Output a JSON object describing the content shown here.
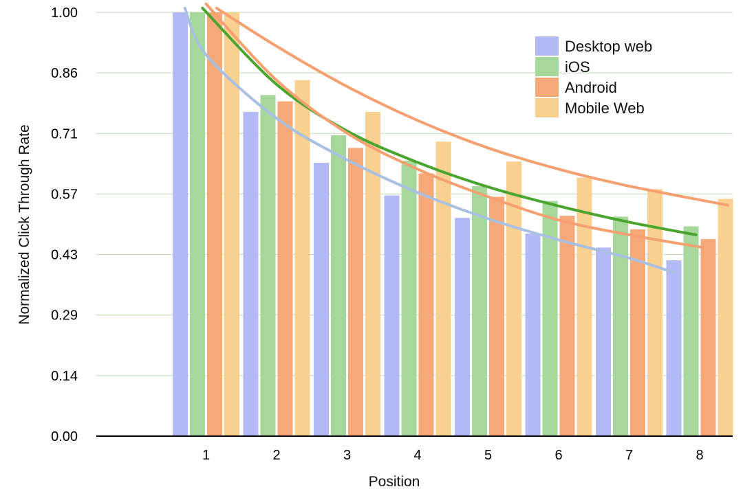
{
  "chart_data": {
    "type": "bar",
    "title": "",
    "xlabel": "Position",
    "ylabel": "Normalized Click Through Rate",
    "categories": [
      "1",
      "2",
      "3",
      "4",
      "5",
      "6",
      "7",
      "8"
    ],
    "yticks": [
      "0.00",
      "0.14",
      "0.29",
      "0.43",
      "0.57",
      "0.71",
      "0.86",
      "1.00"
    ],
    "ylim": [
      0,
      1.0
    ],
    "grid": true,
    "legend_position": "top-right",
    "series": [
      {
        "name": "Desktop web",
        "color": "#b3b9f5",
        "values": [
          1.0,
          0.765,
          0.645,
          0.568,
          0.515,
          0.478,
          0.445,
          0.415
        ]
      },
      {
        "name": "iOS",
        "color": "#a6d89c",
        "values": [
          1.0,
          0.805,
          0.71,
          0.65,
          0.59,
          0.555,
          0.518,
          0.495
        ]
      },
      {
        "name": "Android",
        "color": "#f5a878",
        "values": [
          1.0,
          0.79,
          0.68,
          0.62,
          0.565,
          0.52,
          0.488,
          0.465
        ]
      },
      {
        "name": "Mobile Web",
        "color": "#f8d190",
        "values": [
          1.0,
          0.84,
          0.765,
          0.695,
          0.648,
          0.61,
          0.583,
          0.56
        ]
      }
    ],
    "trendlines": [
      {
        "series": "Desktop web",
        "color": "#a9c0e0",
        "points": [
          [
            0.7,
            1.01
          ],
          [
            1.0,
            0.9
          ],
          [
            2.0,
            0.75
          ],
          [
            3.0,
            0.652
          ],
          [
            4.0,
            0.575
          ],
          [
            5.0,
            0.513
          ],
          [
            6.0,
            0.463
          ],
          [
            7.0,
            0.42
          ],
          [
            7.65,
            0.385
          ]
        ]
      },
      {
        "series": "iOS",
        "color": "#4aa52e",
        "points": [
          [
            0.95,
            1.01
          ],
          [
            2.0,
            0.83
          ],
          [
            3.0,
            0.72
          ],
          [
            4.0,
            0.646
          ],
          [
            5.0,
            0.588
          ],
          [
            6.0,
            0.543
          ],
          [
            7.0,
            0.505
          ],
          [
            7.95,
            0.475
          ]
        ]
      },
      {
        "series": "Android",
        "color": "#f5a070",
        "points": [
          [
            1.0,
            1.02
          ],
          [
            2.0,
            0.84
          ],
          [
            3.0,
            0.715
          ],
          [
            4.0,
            0.63
          ],
          [
            5.0,
            0.565
          ],
          [
            6.0,
            0.51
          ],
          [
            7.0,
            0.475
          ],
          [
            8.05,
            0.445
          ]
        ]
      },
      {
        "series": "Mobile Web",
        "color": "#f5a070",
        "points": [
          [
            1.15,
            1.01
          ],
          [
            2.0,
            0.92
          ],
          [
            3.0,
            0.825
          ],
          [
            4.0,
            0.745
          ],
          [
            5.0,
            0.68
          ],
          [
            6.0,
            0.63
          ],
          [
            7.0,
            0.59
          ],
          [
            8.4,
            0.545
          ]
        ]
      }
    ]
  }
}
